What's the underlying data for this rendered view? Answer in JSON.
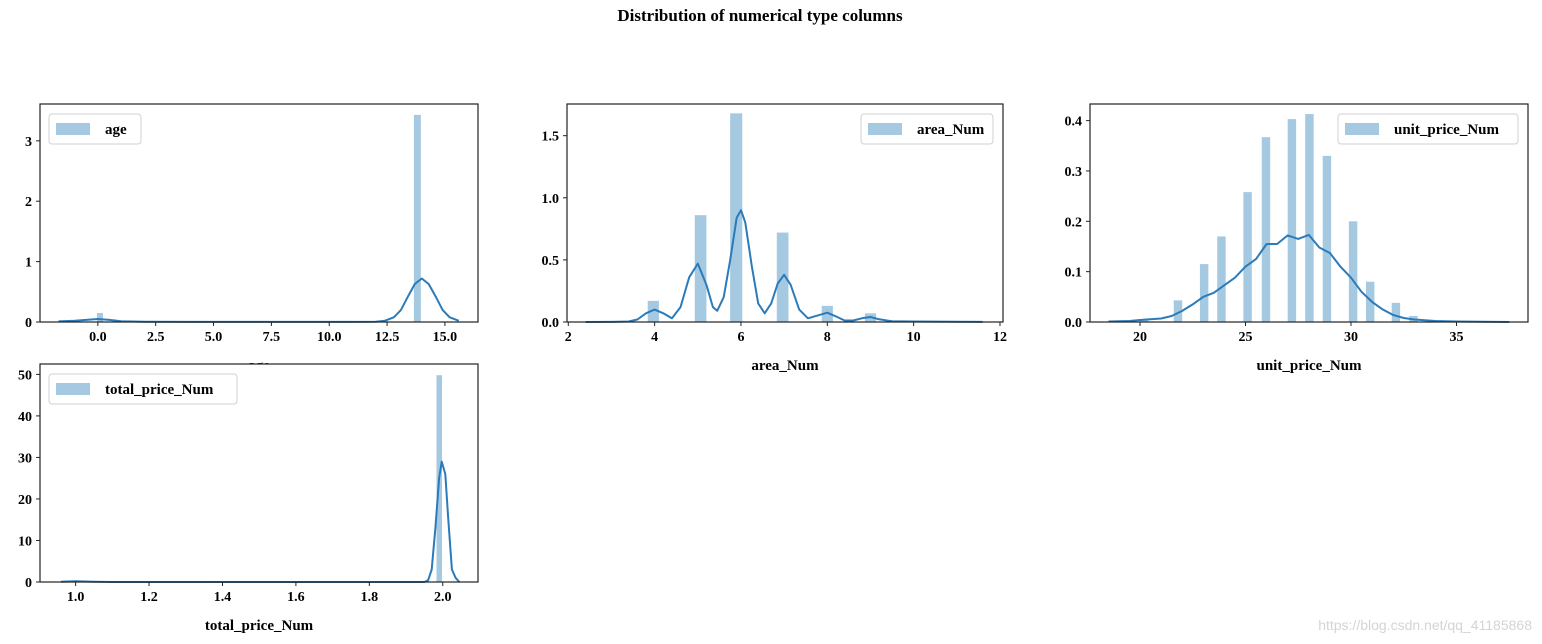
{
  "figure": {
    "title": "Distribution of numerical type columns",
    "watermark": "https://blog.csdn.net/qq_41185868",
    "bar_color": "#a5c9e1",
    "line_color": "#2b7bba"
  },
  "chart_data": [
    {
      "type": "bar",
      "title": "",
      "legend": "age",
      "legend_position": "upper-left",
      "xlabel": "age",
      "ylabel": "",
      "xlim": [
        -2.5,
        16.43
      ],
      "ylim": [
        0,
        3.61
      ],
      "xticks": [
        0.0,
        2.5,
        5.0,
        7.5,
        10.0,
        12.5,
        15.0
      ],
      "xtick_labels": [
        "0.0",
        "2.5",
        "5.0",
        "7.5",
        "10.0",
        "12.5",
        "15.0"
      ],
      "yticks": [
        0,
        1,
        2,
        3
      ],
      "ytick_labels": [
        "0",
        "1",
        "2",
        "3"
      ],
      "bars": [
        {
          "x0": -0.04,
          "x1": 0.22,
          "value": 0.15
        },
        {
          "x0": 13.66,
          "x1": 13.96,
          "value": 3.43
        }
      ],
      "kde": [
        [
          -1.7,
          0.01
        ],
        [
          -1.0,
          0.02
        ],
        [
          -0.5,
          0.035
        ],
        [
          0,
          0.05
        ],
        [
          0.5,
          0.035
        ],
        [
          1,
          0.012
        ],
        [
          2,
          0.003
        ],
        [
          4,
          0.001
        ],
        [
          11,
          0.001
        ],
        [
          12,
          0.004
        ],
        [
          12.4,
          0.02
        ],
        [
          12.8,
          0.08
        ],
        [
          13.1,
          0.2
        ],
        [
          13.4,
          0.42
        ],
        [
          13.7,
          0.63
        ],
        [
          14.0,
          0.72
        ],
        [
          14.3,
          0.63
        ],
        [
          14.6,
          0.42
        ],
        [
          14.9,
          0.2
        ],
        [
          15.2,
          0.08
        ],
        [
          15.6,
          0.02
        ]
      ]
    },
    {
      "type": "bar",
      "title": "",
      "legend": "area_Num",
      "legend_position": "upper-right",
      "xlabel": "area_Num",
      "ylabel": "",
      "xlim": [
        1.97,
        12.07
      ],
      "ylim": [
        0,
        1.755
      ],
      "xticks": [
        2,
        4,
        6,
        8,
        10,
        12
      ],
      "xtick_labels": [
        "2",
        "4",
        "6",
        "8",
        "10",
        "12"
      ],
      "yticks": [
        0.0,
        0.5,
        1.0,
        1.5
      ],
      "ytick_labels": [
        "0.0",
        "0.5",
        "1.0",
        "1.5"
      ],
      "bars": [
        {
          "x0": 3.84,
          "x1": 4.1,
          "value": 0.17
        },
        {
          "x0": 4.93,
          "x1": 5.2,
          "value": 0.86
        },
        {
          "x0": 5.75,
          "x1": 6.03,
          "value": 1.68
        },
        {
          "x0": 6.83,
          "x1": 7.1,
          "value": 0.72
        },
        {
          "x0": 7.87,
          "x1": 8.13,
          "value": 0.13
        },
        {
          "x0": 8.87,
          "x1": 9.13,
          "value": 0.07
        }
      ],
      "kde": [
        [
          2.4,
          0
        ],
        [
          3.0,
          0.001
        ],
        [
          3.4,
          0.004
        ],
        [
          3.6,
          0.02
        ],
        [
          3.8,
          0.07
        ],
        [
          4.0,
          0.1
        ],
        [
          4.2,
          0.07
        ],
        [
          4.4,
          0.03
        ],
        [
          4.6,
          0.12
        ],
        [
          4.8,
          0.36
        ],
        [
          5.0,
          0.47
        ],
        [
          5.2,
          0.3
        ],
        [
          5.35,
          0.12
        ],
        [
          5.45,
          0.09
        ],
        [
          5.6,
          0.2
        ],
        [
          5.75,
          0.5
        ],
        [
          5.9,
          0.84
        ],
        [
          6.0,
          0.9
        ],
        [
          6.1,
          0.8
        ],
        [
          6.25,
          0.45
        ],
        [
          6.4,
          0.15
        ],
        [
          6.55,
          0.07
        ],
        [
          6.7,
          0.15
        ],
        [
          6.85,
          0.31
        ],
        [
          7.0,
          0.38
        ],
        [
          7.15,
          0.3
        ],
        [
          7.35,
          0.1
        ],
        [
          7.55,
          0.03
        ],
        [
          7.8,
          0.055
        ],
        [
          8.0,
          0.075
        ],
        [
          8.2,
          0.045
        ],
        [
          8.4,
          0.012
        ],
        [
          8.6,
          0.012
        ],
        [
          8.8,
          0.03
        ],
        [
          9.0,
          0.04
        ],
        [
          9.2,
          0.022
        ],
        [
          9.5,
          0.006
        ],
        [
          10.0,
          0.004
        ],
        [
          11.0,
          0.002
        ],
        [
          11.6,
          0.001
        ]
      ]
    },
    {
      "type": "bar",
      "title": "",
      "legend": "unit_price_Num",
      "legend_position": "upper-right",
      "xlabel": "unit_price_Num",
      "ylabel": "",
      "xlim": [
        17.63,
        38.39
      ],
      "ylim": [
        0,
        0.433
      ],
      "xticks": [
        20,
        25,
        30,
        35
      ],
      "xtick_labels": [
        "20",
        "25",
        "30",
        "35"
      ],
      "yticks": [
        0.0,
        0.1,
        0.2,
        0.3,
        0.4
      ],
      "ytick_labels": [
        "0.0",
        "0.1",
        "0.2",
        "0.3",
        "0.4"
      ],
      "bars": [
        {
          "x0": 20.0,
          "x1": 20.4,
          "value": 0.005
        },
        {
          "x0": 21.6,
          "x1": 22.0,
          "value": 0.043
        },
        {
          "x0": 22.84,
          "x1": 23.24,
          "value": 0.115
        },
        {
          "x0": 23.66,
          "x1": 24.06,
          "value": 0.17
        },
        {
          "x0": 24.9,
          "x1": 25.3,
          "value": 0.258
        },
        {
          "x0": 25.77,
          "x1": 26.17,
          "value": 0.367
        },
        {
          "x0": 27.0,
          "x1": 27.4,
          "value": 0.403
        },
        {
          "x0": 27.83,
          "x1": 28.23,
          "value": 0.413
        },
        {
          "x0": 28.66,
          "x1": 29.06,
          "value": 0.33
        },
        {
          "x0": 29.9,
          "x1": 30.3,
          "value": 0.2
        },
        {
          "x0": 30.71,
          "x1": 31.11,
          "value": 0.08
        },
        {
          "x0": 31.93,
          "x1": 32.33,
          "value": 0.038
        },
        {
          "x0": 32.76,
          "x1": 33.16,
          "value": 0.012
        }
      ],
      "kde": [
        [
          18.5,
          0.001
        ],
        [
          19.5,
          0.002
        ],
        [
          20.0,
          0.004
        ],
        [
          21.0,
          0.007
        ],
        [
          21.5,
          0.012
        ],
        [
          22.0,
          0.022
        ],
        [
          22.5,
          0.035
        ],
        [
          23.0,
          0.05
        ],
        [
          23.5,
          0.058
        ],
        [
          24.0,
          0.073
        ],
        [
          24.5,
          0.088
        ],
        [
          25.0,
          0.11
        ],
        [
          25.5,
          0.125
        ],
        [
          26.0,
          0.155
        ],
        [
          26.5,
          0.155
        ],
        [
          27.0,
          0.172
        ],
        [
          27.5,
          0.165
        ],
        [
          28.0,
          0.173
        ],
        [
          28.5,
          0.148
        ],
        [
          29.0,
          0.137
        ],
        [
          29.5,
          0.11
        ],
        [
          30.0,
          0.088
        ],
        [
          30.5,
          0.06
        ],
        [
          31.0,
          0.04
        ],
        [
          31.5,
          0.025
        ],
        [
          32.0,
          0.014
        ],
        [
          32.5,
          0.008
        ],
        [
          33.0,
          0.005
        ],
        [
          34.0,
          0.002
        ],
        [
          35.0,
          0.001
        ],
        [
          37.5,
          0.0
        ]
      ]
    },
    {
      "type": "bar",
      "title": "",
      "legend": "total_price_Num",
      "legend_position": "upper-left",
      "xlabel": "total_price_Num",
      "ylabel": "",
      "xlim": [
        0.903,
        2.096
      ],
      "ylim": [
        0,
        52.5
      ],
      "xticks": [
        1.0,
        1.2,
        1.4,
        1.6,
        1.8,
        2.0
      ],
      "xtick_labels": [
        "1.0",
        "1.2",
        "1.4",
        "1.6",
        "1.8",
        "2.0"
      ],
      "yticks": [
        0,
        10,
        20,
        30,
        40,
        50
      ],
      "ytick_labels": [
        "0",
        "10",
        "20",
        "30",
        "40",
        "50"
      ],
      "bars": [
        {
          "x0": 0.99,
          "x1": 1.01,
          "value": 0.15
        },
        {
          "x0": 1.983,
          "x1": 1.998,
          "value": 49.8
        }
      ],
      "kde": [
        [
          0.96,
          0.05
        ],
        [
          1.0,
          0.2
        ],
        [
          1.05,
          0.05
        ],
        [
          1.1,
          0.0
        ],
        [
          1.95,
          0.0
        ],
        [
          1.96,
          0.4
        ],
        [
          1.97,
          3
        ],
        [
          1.98,
          13
        ],
        [
          1.99,
          25
        ],
        [
          1.997,
          29
        ],
        [
          2.007,
          26
        ],
        [
          2.015,
          15
        ],
        [
          2.025,
          3
        ],
        [
          2.035,
          1
        ],
        [
          2.045,
          0
        ]
      ]
    }
  ]
}
